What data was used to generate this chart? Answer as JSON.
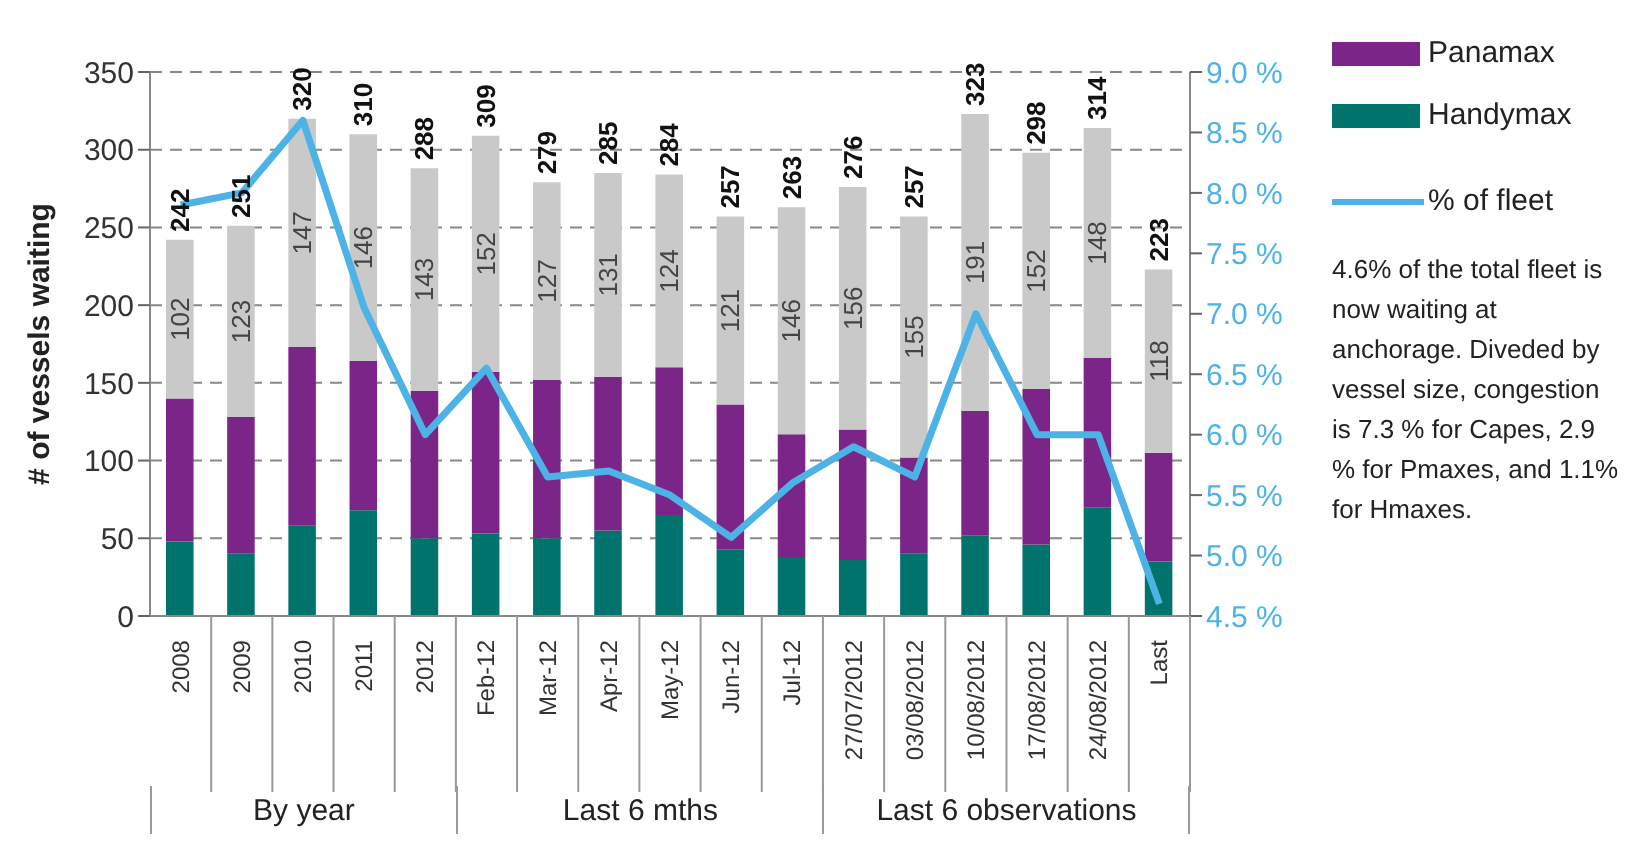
{
  "chart_data": {
    "type": "bar",
    "stacked": true,
    "ylabel": "# of vessels waiting",
    "categories": [
      "2008",
      "2009",
      "2010",
      "2011",
      "2012",
      "Feb-12",
      "Mar-12",
      "Apr-12",
      "May-12",
      "Jun-12",
      "Jul-12",
      "27/07/2012",
      "03/08/2012",
      "10/08/2012",
      "17/08/2012",
      "24/08/2012",
      "Last"
    ],
    "series": [
      {
        "name": "Handymax",
        "color": "#00736d",
        "values": [
          48,
          40,
          58,
          68,
          50,
          53,
          50,
          55,
          65,
          43,
          38,
          36,
          40,
          52,
          46,
          70,
          35
        ]
      },
      {
        "name": "Panamax",
        "color": "#7b2589",
        "values": [
          92,
          88,
          115,
          96,
          95,
          104,
          102,
          99,
          95,
          93,
          79,
          84,
          62,
          80,
          100,
          96,
          70
        ]
      },
      {
        "color": "#c9c9c9",
        "values": [
          102,
          123,
          147,
          146,
          143,
          152,
          127,
          131,
          124,
          121,
          146,
          156,
          155,
          191,
          152,
          148,
          118
        ],
        "value_labels": [
          "102",
          "123",
          "147",
          "146",
          "143",
          "152",
          "127",
          "131",
          "124",
          "121",
          "146",
          "156",
          "155",
          "191",
          "152",
          "148",
          "118"
        ]
      },
      {
        "name": "% of fleet",
        "type": "line",
        "axis": "y2",
        "color": "#4db3e6",
        "values": [
          7.9,
          8.0,
          8.6,
          7.05,
          6.0,
          6.55,
          5.65,
          5.7,
          5.5,
          5.15,
          5.6,
          5.9,
          5.65,
          7.0,
          6.0,
          6.0,
          4.6
        ]
      }
    ],
    "totals": [
      "242",
      "251",
      "320",
      "310",
      "288",
      "309",
      "279",
      "285",
      "284",
      "257",
      "263",
      "276",
      "257",
      "323",
      "298",
      "314",
      "223"
    ],
    "ylim": [
      0,
      350
    ],
    "yticks": [
      0,
      50,
      100,
      150,
      200,
      250,
      300,
      350
    ],
    "y2lim": [
      4.5,
      9.0
    ],
    "y2ticks": [
      {
        "value": 4.5,
        "label": "4.5 %"
      },
      {
        "value": 5.0,
        "label": "5.0 %"
      },
      {
        "value": 5.5,
        "label": "5.5 %"
      },
      {
        "value": 6.0,
        "label": "6.0 %"
      },
      {
        "value": 6.5,
        "label": "6.5 %"
      },
      {
        "value": 7.0,
        "label": "7.0 %"
      },
      {
        "value": 7.5,
        "label": "7.5 %"
      },
      {
        "value": 8.0,
        "label": "8.0 %"
      },
      {
        "value": 8.5,
        "label": "8.5 %"
      },
      {
        "value": 9.0,
        "label": "9.0 %"
      }
    ],
    "grid": "y",
    "legend": "right",
    "marker": "none",
    "line_style": "solid",
    "annotations": [
      "By year",
      "Last 6 mths",
      "Last 6 observations",
      "4.6% of the total fleet is now waiting at anchorage. Diveded by vessel size, congestion is 7.3 % for Capes, 2.9 % for Pmaxes, and 1.1% for Hmaxes."
    ]
  }
}
